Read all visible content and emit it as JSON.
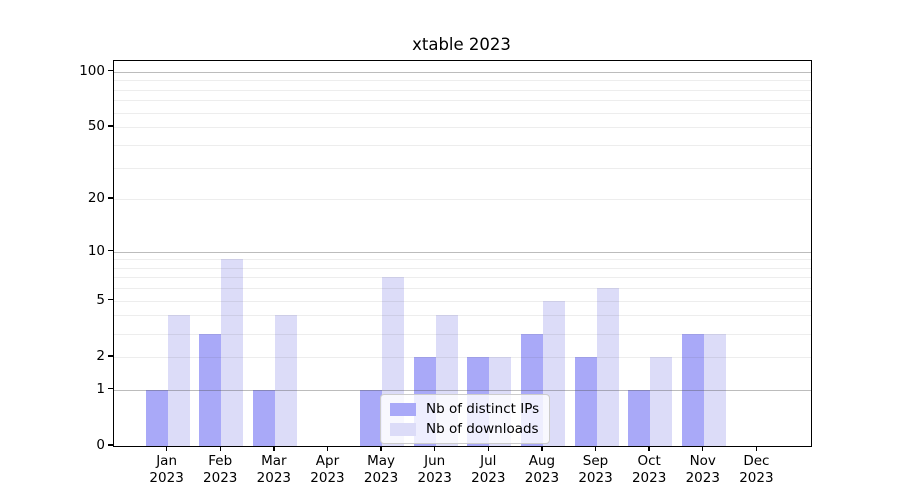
{
  "title": "xtable 2023",
  "legend": {
    "items": [
      {
        "label": "Nb of distinct IPs",
        "color": "#a9a9f8"
      },
      {
        "label": "Nb of downloads",
        "color": "#dcdcf8"
      }
    ]
  },
  "y_axis": {
    "tick_values": [
      0,
      1,
      2,
      5,
      10,
      20,
      50,
      100
    ],
    "tick_labels": [
      "0",
      "1",
      "2",
      "5",
      "10",
      "20",
      "50",
      "100"
    ]
  },
  "x_axis": {
    "year": "2023",
    "months": [
      "Jan",
      "Feb",
      "Mar",
      "Apr",
      "May",
      "Jun",
      "Jul",
      "Aug",
      "Sep",
      "Oct",
      "Nov",
      "Dec"
    ]
  },
  "chart_data": {
    "type": "bar",
    "title": "xtable 2023",
    "categories": [
      "Jan 2023",
      "Feb 2023",
      "Mar 2023",
      "Apr 2023",
      "May 2023",
      "Jun 2023",
      "Jul 2023",
      "Aug 2023",
      "Sep 2023",
      "Oct 2023",
      "Nov 2023",
      "Dec 2023"
    ],
    "series": [
      {
        "name": "Nb of distinct IPs",
        "color": "#a9a9f8",
        "values": [
          1,
          3,
          1,
          0,
          1,
          2,
          2,
          3,
          2,
          1,
          3,
          0
        ]
      },
      {
        "name": "Nb of downloads",
        "color": "#dcdcf8",
        "values": [
          4,
          9,
          4,
          0,
          7,
          4,
          2,
          5,
          6,
          2,
          3,
          0
        ]
      }
    ],
    "xlabel": "",
    "ylabel": "",
    "y_scale": "log1p",
    "ylim": [
      0,
      114
    ],
    "y_ticks": [
      0,
      1,
      2,
      5,
      10,
      20,
      50,
      100
    ],
    "grid": {
      "major": [
        1,
        10,
        100
      ],
      "minor": [
        2,
        3,
        4,
        5,
        6,
        7,
        8,
        9,
        20,
        30,
        40,
        50,
        60,
        70,
        80,
        90
      ]
    },
    "grid_on": true,
    "legend_position": "inside-lower-center-left",
    "bar_layout": "grouped-pairs-centered-on-month-tick"
  }
}
